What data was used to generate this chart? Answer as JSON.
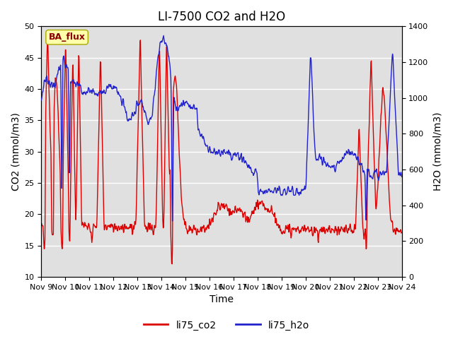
{
  "title": "LI-7500 CO2 and H2O",
  "xlabel": "Time",
  "ylabel_left": "CO2 (mmol/m3)",
  "ylabel_right": "H2O (mmol/m3)",
  "ylim_left": [
    10,
    50
  ],
  "ylim_right": [
    0,
    1400
  ],
  "yticks_left": [
    10,
    15,
    20,
    25,
    30,
    35,
    40,
    45,
    50
  ],
  "yticks_right": [
    0,
    200,
    400,
    600,
    800,
    1000,
    1200,
    1400
  ],
  "color_co2": "#dd0000",
  "color_h2o": "#2222cc",
  "legend_co2": "li75_co2",
  "legend_h2o": "li75_h2o",
  "annotation_text": "BA_flux",
  "bg_color": "#e0e0e0",
  "title_fontsize": 12,
  "label_fontsize": 10,
  "tick_fontsize": 8,
  "linewidth": 1.0
}
